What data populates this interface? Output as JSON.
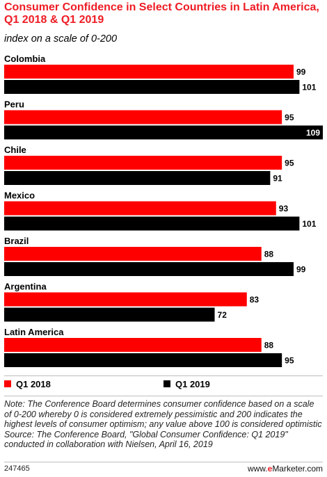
{
  "header": {
    "title": "Consumer Confidence in Select Countries in Latin America, Q1 2018 & Q1 2019",
    "subtitle": "index on a scale of 0-200"
  },
  "colors": {
    "q1_2018": "#ff0000",
    "q1_2019": "#000000",
    "title": "#ee1c25"
  },
  "chart_data": {
    "type": "bar",
    "orientation": "horizontal",
    "title": "Consumer Confidence in Select Countries in Latin America, Q1 2018 & Q1 2019",
    "subtitle": "index on a scale of 0-200",
    "categories": [
      "Colombia",
      "Peru",
      "Chile",
      "Mexico",
      "Brazil",
      "Argentina",
      "Latin America"
    ],
    "series": [
      {
        "name": "Q1 2018",
        "color": "#ff0000",
        "values": [
          99,
          95,
          95,
          93,
          88,
          83,
          88
        ]
      },
      {
        "name": "Q1 2019",
        "color": "#000000",
        "values": [
          101,
          109,
          91,
          101,
          99,
          72,
          95
        ]
      }
    ],
    "xlim": [
      0,
      109
    ],
    "grid": false,
    "legend_position": "bottom"
  },
  "legend": {
    "q1_2018": "Q1 2018",
    "q1_2019": "Q1 2019"
  },
  "footnote": {
    "note": "Note: The Conference Board determines consumer confidence based on a scale of 0-200 whereby 0 is considered extremely pessimistic and 200 indicates the highest levels of consumer optimism; any value above 100 is considered optimistic",
    "source": "Source: The Conference Board, \"Global Consumer Confidence: Q1 2019\" conducted in collaboration with Nielsen, April 16, 2019"
  },
  "footer": {
    "chart_id": "247465",
    "brand_prefix": "www.",
    "brand_e": "e",
    "brand_suffix": "Marketer.com"
  }
}
